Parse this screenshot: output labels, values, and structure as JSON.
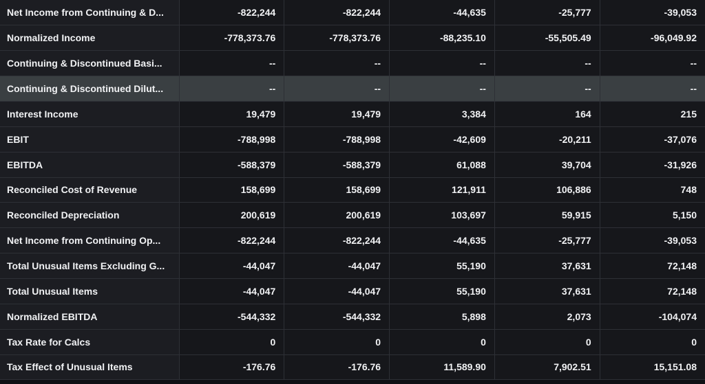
{
  "rows": [
    {
      "label": "Net Income from Continuing & D...",
      "values": [
        "-822,244",
        "-822,244",
        "-44,635",
        "-25,777",
        "-39,053"
      ]
    },
    {
      "label": "Normalized Income",
      "values": [
        "-778,373.76",
        "-778,373.76",
        "-88,235.10",
        "-55,505.49",
        "-96,049.92"
      ]
    },
    {
      "label": "Continuing & Discontinued Basi...",
      "values": [
        "--",
        "--",
        "--",
        "--",
        "--"
      ]
    },
    {
      "label": "Continuing & Discontinued Dilut...",
      "values": [
        "--",
        "--",
        "--",
        "--",
        "--"
      ],
      "highlighted": true
    },
    {
      "label": "Interest Income",
      "values": [
        "19,479",
        "19,479",
        "3,384",
        "164",
        "215"
      ]
    },
    {
      "label": "EBIT",
      "values": [
        "-788,998",
        "-788,998",
        "-42,609",
        "-20,211",
        "-37,076"
      ]
    },
    {
      "label": "EBITDA",
      "values": [
        "-588,379",
        "-588,379",
        "61,088",
        "39,704",
        "-31,926"
      ]
    },
    {
      "label": "Reconciled Cost of Revenue",
      "values": [
        "158,699",
        "158,699",
        "121,911",
        "106,886",
        "748"
      ]
    },
    {
      "label": "Reconciled Depreciation",
      "values": [
        "200,619",
        "200,619",
        "103,697",
        "59,915",
        "5,150"
      ]
    },
    {
      "label": "Net Income from Continuing Op...",
      "values": [
        "-822,244",
        "-822,244",
        "-44,635",
        "-25,777",
        "-39,053"
      ]
    },
    {
      "label": "Total Unusual Items Excluding G...",
      "values": [
        "-44,047",
        "-44,047",
        "55,190",
        "37,631",
        "72,148"
      ]
    },
    {
      "label": "Total Unusual Items",
      "values": [
        "-44,047",
        "-44,047",
        "55,190",
        "37,631",
        "72,148"
      ]
    },
    {
      "label": "Normalized EBITDA",
      "values": [
        "-544,332",
        "-544,332",
        "5,898",
        "2,073",
        "-104,074"
      ]
    },
    {
      "label": "Tax Rate for Calcs",
      "values": [
        "0",
        "0",
        "0",
        "0",
        "0"
      ]
    },
    {
      "label": "Tax Effect of Unusual Items",
      "values": [
        "-176.76",
        "-176.76",
        "11,589.90",
        "7,902.51",
        "15,151.08"
      ]
    }
  ]
}
